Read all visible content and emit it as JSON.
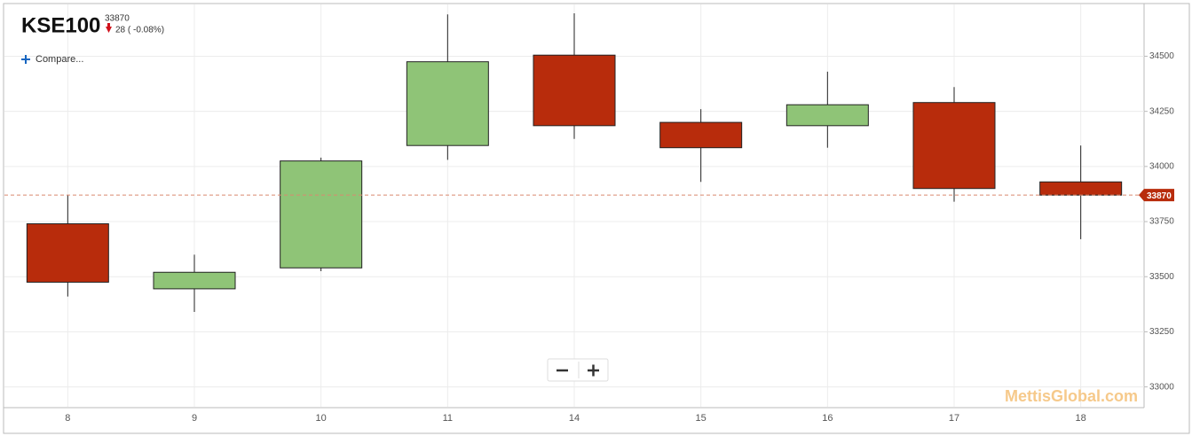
{
  "header": {
    "symbol": "KSE100",
    "change": "28 ( -0.08%)",
    "compare": "Compare...",
    "watermark": "MettisGlobal.com"
  },
  "chart_data": {
    "type": "candlestick",
    "categories": [
      "8",
      "9",
      "10",
      "11",
      "14",
      "15",
      "16",
      "17",
      "18"
    ],
    "open": [
      33740,
      33445,
      33540,
      34095,
      34505,
      34200,
      34185,
      34290,
      33930
    ],
    "high": [
      33870,
      33600,
      34040,
      34690,
      34695,
      34260,
      34430,
      34360,
      34095
    ],
    "low": [
      33410,
      33340,
      33525,
      34030,
      34125,
      33930,
      34085,
      33840,
      33670
    ],
    "close": [
      33475,
      33520,
      34025,
      34475,
      34185,
      34085,
      34280,
      33900,
      33870
    ],
    "up_color": "#8fc477",
    "down_color": "#b82c0c",
    "last_price": 33870,
    "ylim": [
      32910,
      34735
    ],
    "yticks": [
      33000,
      33250,
      33500,
      33750,
      34000,
      34250,
      34500
    ],
    "grid": true
  }
}
